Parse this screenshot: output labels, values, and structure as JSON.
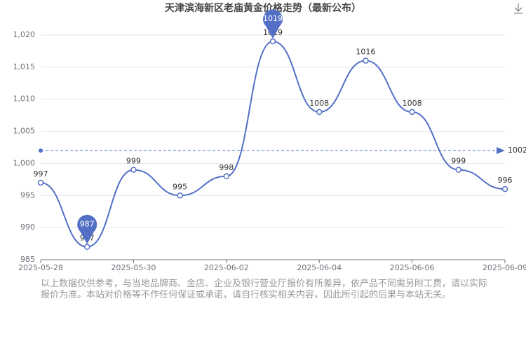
{
  "chart_data": {
    "type": "line",
    "title": "天津滨海新区老庙黄金价格走势（最新公布）",
    "categories": [
      "2025-05-28",
      null,
      "2025-05-30",
      null,
      "2025-06-02",
      null,
      "2025-06-04",
      null,
      "2025-06-06",
      null,
      "2025-06-09"
    ],
    "values": [
      997,
      987,
      999,
      995,
      998,
      1019,
      1008,
      1016,
      1008,
      999,
      996
    ],
    "color": "#5470c6",
    "average_line": 1002,
    "ylim": [
      985,
      1020
    ],
    "yticks": [
      985,
      990,
      995,
      {
        "value": 1000,
        "label": "1,000"
      },
      {
        "value": 1005,
        "label": "1,005"
      },
      {
        "value": 1010,
        "label": "1,010"
      },
      {
        "value": 1015,
        "label": "1,015"
      },
      {
        "value": 1020,
        "label": "1,020"
      }
    ],
    "grid": true,
    "note": "以上数据仅供参考，与当地品牌商、金店、企业及银行营业厅报价有所差异，依产品不同需另附工费，请以实际报价为准。本站对价格等不作任何保证或承诺，请自行核实相关内容，因此所引起的后果与本站无关。"
  }
}
